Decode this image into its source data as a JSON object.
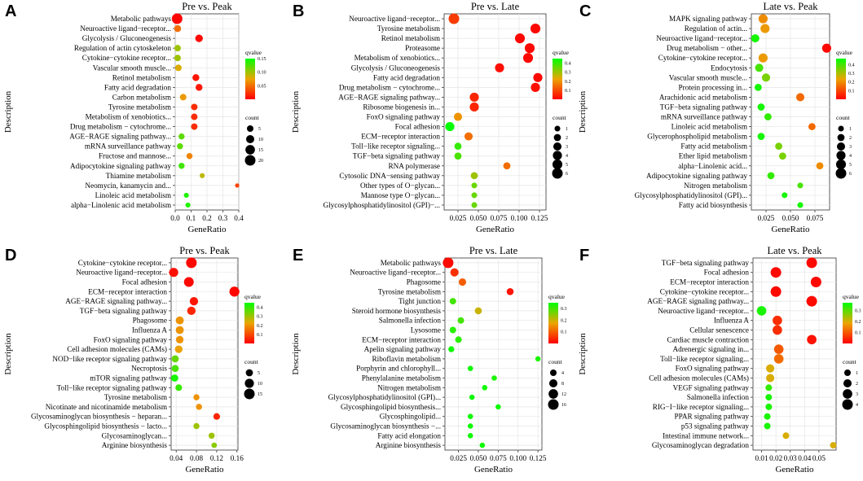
{
  "chart_data": [
    {
      "panel": "A",
      "type": "scatter",
      "title": "Pre vs. Peak",
      "xlabel": "GeneRatio",
      "ylabel": "Description",
      "xlim": [
        0,
        0.4
      ],
      "xticks": [
        "0.0",
        "0.1",
        "0.2",
        "0.3",
        "0.4"
      ],
      "qvalue_legend": {
        "title": "qvalue",
        "range": [
          0,
          0.15
        ],
        "ticks": [
          "0.15",
          "0.10",
          "0.05"
        ]
      },
      "count_legend": {
        "title": "count",
        "values": [
          5,
          10,
          15,
          20
        ]
      },
      "terms": [
        {
          "name": "Metabolic pathways",
          "x": 0.012,
          "count": 20,
          "q": 0.002
        },
        {
          "name": "Neuroactive ligand−receptor...",
          "x": 0.015,
          "count": 6,
          "q": 0.05
        },
        {
          "name": "Glycolysis / Gluconeogenesis",
          "x": 0.15,
          "count": 8,
          "q": 0.004
        },
        {
          "name": "Regulation of actin cytoskeleton",
          "x": 0.015,
          "count": 5,
          "q": 0.1
        },
        {
          "name": "Cytokine−cytokine receptor...",
          "x": 0.015,
          "count": 5,
          "q": 0.1
        },
        {
          "name": "Vascular smooth muscle...",
          "x": 0.02,
          "count": 5,
          "q": 0.08
        },
        {
          "name": "Retinol metabolism",
          "x": 0.13,
          "count": 6,
          "q": 0.01
        },
        {
          "name": "Fatty acid degradation",
          "x": 0.15,
          "count": 6,
          "q": 0.01
        },
        {
          "name": "Carbon metabolism",
          "x": 0.05,
          "count": 5,
          "q": 0.07
        },
        {
          "name": "Tyrosine metabolism",
          "x": 0.12,
          "count": 5,
          "q": 0.02
        },
        {
          "name": "Metabolism of xenobiotics...",
          "x": 0.12,
          "count": 5,
          "q": 0.02
        },
        {
          "name": "Drug metabolism − cytochrome...",
          "x": 0.12,
          "count": 5,
          "q": 0.02
        },
        {
          "name": "AGE−RAGE signaling pathway...",
          "x": 0.04,
          "count": 4,
          "q": 0.12
        },
        {
          "name": "mRNA surveillance pathway",
          "x": 0.03,
          "count": 4,
          "q": 0.12
        },
        {
          "name": "Fructose and mannose...",
          "x": 0.09,
          "count": 4,
          "q": 0.06
        },
        {
          "name": "Adipocytokine signaling pathway",
          "x": 0.04,
          "count": 4,
          "q": 0.13
        },
        {
          "name": "Thiamine metabolism",
          "x": 0.17,
          "count": 2,
          "q": 0.09
        },
        {
          "name": "Neomycin, kanamycin and...",
          "x": 0.39,
          "count": 1,
          "q": 0.03
        },
        {
          "name": "Linoleic acid metabolism",
          "x": 0.07,
          "count": 2,
          "q": 0.14
        },
        {
          "name": "alpha−Linolenic acid metabolism",
          "x": 0.08,
          "count": 2,
          "q": 0.14
        }
      ]
    },
    {
      "panel": "B",
      "type": "scatter",
      "title": "Pre vs. Late",
      "xlabel": "GeneRatio",
      "ylabel": "Description",
      "xlim": [
        0.008,
        0.133
      ],
      "xticks": [
        "0.025",
        "0.050",
        "0.075",
        "0.100",
        "0.125"
      ],
      "qvalue_legend": {
        "title": "qvalue",
        "range": [
          0,
          0.45
        ],
        "ticks": [
          "0.4",
          "0.3",
          "0.2",
          "0.1"
        ]
      },
      "count_legend": {
        "title": "count",
        "values": [
          1,
          2,
          3,
          4,
          5,
          6
        ]
      },
      "terms": [
        {
          "name": "Neuroactive ligand−receptor...",
          "x": 0.02,
          "count": 6,
          "q": 0.08
        },
        {
          "name": "Tyrosine metabolism",
          "x": 0.12,
          "count": 5,
          "q": 0.01
        },
        {
          "name": "Retinol metabolism",
          "x": 0.101,
          "count": 5,
          "q": 0.01
        },
        {
          "name": "Proteasome",
          "x": 0.113,
          "count": 5,
          "q": 0.01
        },
        {
          "name": "Metabolism of xenobiotics...",
          "x": 0.111,
          "count": 5,
          "q": 0.01
        },
        {
          "name": "Glycolysis / Gluconeogenesis",
          "x": 0.076,
          "count": 4,
          "q": 0.02
        },
        {
          "name": "Fatty acid degradation",
          "x": 0.123,
          "count": 4,
          "q": 0.01
        },
        {
          "name": "Drug metabolism − cytochrome...",
          "x": 0.12,
          "count": 4,
          "q": 0.02
        },
        {
          "name": "AGE−RAGE signaling pathway...",
          "x": 0.045,
          "count": 4,
          "q": 0.05
        },
        {
          "name": "Ribosome biogenesis in...",
          "x": 0.045,
          "count": 4,
          "q": 0.05
        },
        {
          "name": "FoxO signaling pathway",
          "x": 0.025,
          "count": 3,
          "q": 0.2
        },
        {
          "name": "Focal adhesion",
          "x": 0.015,
          "count": 4,
          "q": 0.45
        },
        {
          "name": "ECM−receptor interaction",
          "x": 0.038,
          "count": 3,
          "q": 0.15
        },
        {
          "name": "Toll−like receptor signaling...",
          "x": 0.025,
          "count": 2,
          "q": 0.4
        },
        {
          "name": "TGF−beta signaling pathway",
          "x": 0.025,
          "count": 2,
          "q": 0.38
        },
        {
          "name": "RNA polymerase",
          "x": 0.085,
          "count": 2,
          "q": 0.15
        },
        {
          "name": "Cytosolic DNA−sensing pathway",
          "x": 0.045,
          "count": 2,
          "q": 0.3
        },
        {
          "name": "Other types of O−glycan...",
          "x": 0.045,
          "count": 1,
          "q": 0.35
        },
        {
          "name": "Mannose type O−glycan...",
          "x": 0.045,
          "count": 1,
          "q": 0.35
        },
        {
          "name": "Glycosylphosphatidylinositol (GPI)−...",
          "x": 0.045,
          "count": 1,
          "q": 0.35
        }
      ]
    },
    {
      "panel": "C",
      "type": "scatter",
      "title": "Late vs. Peak",
      "xlabel": "GeneRatio",
      "ylabel": "Description",
      "xlim": [
        0.01,
        0.09
      ],
      "xticks": [
        "0.025",
        "0.050",
        "0.075"
      ],
      "qvalue_legend": {
        "title": "qvalue",
        "range": [
          0,
          0.47
        ],
        "ticks": [
          "0.4",
          "0.3",
          "0.2",
          "0.1"
        ]
      },
      "count_legend": {
        "title": "count",
        "values": [
          1,
          2,
          3,
          4,
          5,
          6
        ]
      },
      "terms": [
        {
          "name": "MAPK signaling pathway",
          "x": 0.022,
          "count": 4,
          "q": 0.2
        },
        {
          "name": "Regulation of actin...",
          "x": 0.024,
          "count": 4,
          "q": 0.22
        },
        {
          "name": "Neuroactive ligand−receptor...",
          "x": 0.014,
          "count": 3,
          "q": 0.45
        },
        {
          "name": "Drug metabolism − other...",
          "x": 0.087,
          "count": 4,
          "q": 0.01
        },
        {
          "name": "Cytokine−cytokine receptor...",
          "x": 0.022,
          "count": 4,
          "q": 0.22
        },
        {
          "name": "Endocytosis",
          "x": 0.018,
          "count": 3,
          "q": 0.4
        },
        {
          "name": "Vascular smooth muscle...",
          "x": 0.025,
          "count": 3,
          "q": 0.35
        },
        {
          "name": "Protein processing in...",
          "x": 0.017,
          "count": 2,
          "q": 0.45
        },
        {
          "name": "Arachidonic acid metabolism",
          "x": 0.06,
          "count": 3,
          "q": 0.15
        },
        {
          "name": "TGF−beta signaling pathway",
          "x": 0.02,
          "count": 2,
          "q": 0.45
        },
        {
          "name": "mRNA surveillance pathway",
          "x": 0.027,
          "count": 2,
          "q": 0.42
        },
        {
          "name": "Linoleic acid metabolism",
          "x": 0.072,
          "count": 2,
          "q": 0.15
        },
        {
          "name": "Glycerophospholipid metabolism",
          "x": 0.02,
          "count": 2,
          "q": 0.45
        },
        {
          "name": "Fatty acid metabolism",
          "x": 0.038,
          "count": 2,
          "q": 0.35
        },
        {
          "name": "Ether lipid metabolism",
          "x": 0.042,
          "count": 2,
          "q": 0.35
        },
        {
          "name": "alpha−Linolenic acid...",
          "x": 0.08,
          "count": 2,
          "q": 0.2
        },
        {
          "name": "Adipocytokine signaling pathway",
          "x": 0.03,
          "count": 2,
          "q": 0.42
        },
        {
          "name": "Nitrogen metabolism",
          "x": 0.06,
          "count": 1,
          "q": 0.4
        },
        {
          "name": "Glycosylphosphatidylinositol (GPI)...",
          "x": 0.044,
          "count": 1,
          "q": 0.45
        },
        {
          "name": "Fatty acid biosynthesis",
          "x": 0.06,
          "count": 1,
          "q": 0.45
        }
      ]
    },
    {
      "panel": "D",
      "type": "scatter",
      "title": "Pre vs. Peak",
      "xlabel": "GeneRatio",
      "ylabel": "Description",
      "xlim": [
        0.03,
        0.162
      ],
      "xticks": [
        "0.04",
        "0.08",
        "0.12",
        "0.16"
      ],
      "qvalue_legend": {
        "title": "qvalue",
        "range": [
          0,
          0.45
        ],
        "ticks": [
          "0.4",
          "0.3",
          "0.2",
          "0.1"
        ]
      },
      "count_legend": {
        "title": "count",
        "values": [
          5,
          10,
          15
        ]
      },
      "terms": [
        {
          "name": "Cytokine−cytokine receptor...",
          "x": 0.07,
          "count": 15,
          "q": 0.01
        },
        {
          "name": "Neuroactive ligand−receptor...",
          "x": 0.035,
          "count": 10,
          "q": 0.02
        },
        {
          "name": "Focal adhesion",
          "x": 0.065,
          "count": 12,
          "q": 0.01
        },
        {
          "name": "ECM−receptor interaction",
          "x": 0.155,
          "count": 13,
          "q": 0.01
        },
        {
          "name": "AGE−RAGE signaling pathway...",
          "x": 0.075,
          "count": 8,
          "q": 0.03
        },
        {
          "name": "TGF−beta signaling pathway",
          "x": 0.07,
          "count": 8,
          "q": 0.05
        },
        {
          "name": "Phagosome",
          "x": 0.047,
          "count": 7,
          "q": 0.2
        },
        {
          "name": "Influenza A",
          "x": 0.047,
          "count": 7,
          "q": 0.2
        },
        {
          "name": "FoxO signaling pathway",
          "x": 0.047,
          "count": 6,
          "q": 0.2
        },
        {
          "name": "Cell adhesion molecules (CAMs)",
          "x": 0.045,
          "count": 6,
          "q": 0.22
        },
        {
          "name": "NOD−like receptor signaling pathway",
          "x": 0.038,
          "count": 5,
          "q": 0.35
        },
        {
          "name": "Necroptosis",
          "x": 0.038,
          "count": 5,
          "q": 0.38
        },
        {
          "name": "mTOR signaling pathway",
          "x": 0.037,
          "count": 5,
          "q": 0.43
        },
        {
          "name": "Toll−like receptor signaling pathway",
          "x": 0.045,
          "count": 4,
          "q": 0.4
        },
        {
          "name": "Tyrosine metabolism",
          "x": 0.08,
          "count": 3,
          "q": 0.2
        },
        {
          "name": "Nicotinate and nicotinamide metabolism",
          "x": 0.085,
          "count": 3,
          "q": 0.2
        },
        {
          "name": "Glycosaminoglycan biosynthesis − heparan...",
          "x": 0.12,
          "count": 4,
          "q": 0.05
        },
        {
          "name": "Glycosphingolipid biosynthesis − lacto...",
          "x": 0.08,
          "count": 3,
          "q": 0.3
        },
        {
          "name": "Glycosaminoglycan...",
          "x": 0.11,
          "count": 3,
          "q": 0.3
        },
        {
          "name": "Arginine biosynthesis",
          "x": 0.115,
          "count": 2,
          "q": 0.32
        }
      ]
    },
    {
      "panel": "E",
      "type": "scatter",
      "title": "Pre vs. Late",
      "xlabel": "GeneRatio",
      "ylabel": "Description",
      "xlim": [
        0.008,
        0.13
      ],
      "xticks": [
        "0.025",
        "0.050",
        "0.075",
        "0.100",
        "0.125"
      ],
      "qvalue_legend": {
        "title": "qvalue",
        "range": [
          0,
          0.35
        ],
        "ticks": [
          "0.3",
          "0.2",
          "0.1"
        ]
      },
      "count_legend": {
        "title": "count",
        "values": [
          4,
          8,
          12,
          16
        ]
      },
      "terms": [
        {
          "name": "Metabolic pathways",
          "x": 0.012,
          "count": 16,
          "q": 0.01
        },
        {
          "name": "Neuroactive ligand−receptor...",
          "x": 0.02,
          "count": 8,
          "q": 0.05
        },
        {
          "name": "Phagosome",
          "x": 0.03,
          "count": 6,
          "q": 0.1
        },
        {
          "name": "Tyrosine metabolism",
          "x": 0.09,
          "count": 5,
          "q": 0.02
        },
        {
          "name": "Tight junction",
          "x": 0.018,
          "count": 4,
          "q": 0.3
        },
        {
          "name": "Steroid hormone biosynthesis",
          "x": 0.05,
          "count": 5,
          "q": 0.2
        },
        {
          "name": "Salmonella infection",
          "x": 0.028,
          "count": 4,
          "q": 0.3
        },
        {
          "name": "Lysosome",
          "x": 0.018,
          "count": 4,
          "q": 0.32
        },
        {
          "name": "ECM−receptor interaction",
          "x": 0.025,
          "count": 4,
          "q": 0.32
        },
        {
          "name": "Apelin signaling pathway",
          "x": 0.016,
          "count": 3,
          "q": 0.34
        },
        {
          "name": "Riboflavin metabolism",
          "x": 0.125,
          "count": 2,
          "q": 0.33
        },
        {
          "name": "Porphyrin and chlorophyll...",
          "x": 0.04,
          "count": 2,
          "q": 0.34
        },
        {
          "name": "Phenylalanine metabolism",
          "x": 0.07,
          "count": 2,
          "q": 0.33
        },
        {
          "name": "Nitrogen metabolism",
          "x": 0.058,
          "count": 2,
          "q": 0.34
        },
        {
          "name": "Glycosylphosphatidylinositol (GPI)...",
          "x": 0.042,
          "count": 2,
          "q": 0.34
        },
        {
          "name": "Glycosphingolipid biosynthesis...",
          "x": 0.075,
          "count": 2,
          "q": 0.34
        },
        {
          "name": "Glycosphingolipid...",
          "x": 0.04,
          "count": 2,
          "q": 0.34
        },
        {
          "name": "Glycosaminoglycan biosynthesis −...",
          "x": 0.04,
          "count": 2,
          "q": 0.34
        },
        {
          "name": "Fatty acid elongation",
          "x": 0.04,
          "count": 2,
          "q": 0.34
        },
        {
          "name": "Arginine biosynthesis",
          "x": 0.055,
          "count": 2,
          "q": 0.34
        }
      ]
    },
    {
      "panel": "F",
      "type": "scatter",
      "title": "Late vs. Peak",
      "xlabel": "GeneRatio",
      "ylabel": "Description",
      "xlim": [
        0.004,
        0.062
      ],
      "xticks": [
        "0.01",
        "0.02",
        "0.03",
        "0.04",
        "0.05"
      ],
      "qvalue_legend": {
        "title": "qvalue",
        "range": [
          0,
          0.37
        ],
        "ticks": [
          "0.3",
          "0.2",
          "0.1"
        ]
      },
      "count_legend": {
        "title": "count",
        "values": [
          1,
          2,
          3,
          4
        ]
      },
      "terms": [
        {
          "name": "TGF−beta signaling pathway",
          "x": 0.045,
          "count": 4,
          "q": 0.01
        },
        {
          "name": "Focal adhesion",
          "x": 0.02,
          "count": 4,
          "q": 0.01
        },
        {
          "name": "ECM−receptor interaction",
          "x": 0.048,
          "count": 4,
          "q": 0.01
        },
        {
          "name": "Cytokine−cytokine receptor...",
          "x": 0.02,
          "count": 4,
          "q": 0.01
        },
        {
          "name": "AGE−RAGE signaling pathway...",
          "x": 0.045,
          "count": 4,
          "q": 0.01
        },
        {
          "name": "Neuroactive ligand−receptor...",
          "x": 0.01,
          "count": 3,
          "q": 0.35
        },
        {
          "name": "Influenza A",
          "x": 0.021,
          "count": 3,
          "q": 0.05
        },
        {
          "name": "Cellular senescence",
          "x": 0.021,
          "count": 3,
          "q": 0.05
        },
        {
          "name": "Cardiac muscle contraction",
          "x": 0.045,
          "count": 3,
          "q": 0.02
        },
        {
          "name": "Adrenergic signaling in...",
          "x": 0.022,
          "count": 3,
          "q": 0.1
        },
        {
          "name": "Toll−like receptor signaling...",
          "x": 0.022,
          "count": 3,
          "q": 0.12
        },
        {
          "name": "FoxO signaling pathway",
          "x": 0.016,
          "count": 2,
          "q": 0.2
        },
        {
          "name": "Cell adhesion molecules (CAMs)",
          "x": 0.016,
          "count": 2,
          "q": 0.2
        },
        {
          "name": "VEGF signaling pathway",
          "x": 0.015,
          "count": 1,
          "q": 0.33
        },
        {
          "name": "Salmonella infection",
          "x": 0.015,
          "count": 1,
          "q": 0.35
        },
        {
          "name": "RIG−I−like receptor signaling...",
          "x": 0.015,
          "count": 1,
          "q": 0.35
        },
        {
          "name": "PPAR signaling pathway",
          "x": 0.014,
          "count": 1,
          "q": 0.35
        },
        {
          "name": "p53 signaling pathway",
          "x": 0.014,
          "count": 1,
          "q": 0.35
        },
        {
          "name": "Intestinal immune network...",
          "x": 0.027,
          "count": 1,
          "q": 0.2
        },
        {
          "name": "Glycosaminoglycan degradation",
          "x": 0.06,
          "count": 1,
          "q": 0.2
        }
      ]
    }
  ]
}
